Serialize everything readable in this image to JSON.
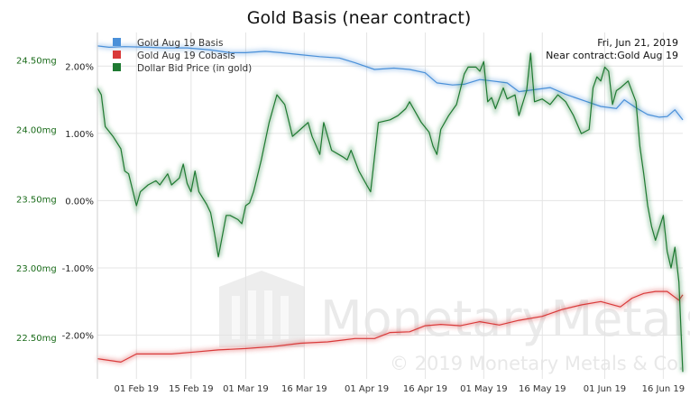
{
  "chart_data": {
    "type": "line",
    "title": "Gold Basis (near contract)",
    "info": {
      "date": "Fri, Jun 21, 2019",
      "contract": "Near contract:Gold Aug 19"
    },
    "watermark": {
      "brand": "MonetaryMetals",
      "copyright": "© 2019 Monetary Metals & Co."
    },
    "legend_position": "top-left",
    "grid": true,
    "x_range": [
      "2019-01-22",
      "2019-06-21"
    ],
    "x_ticks": [
      "01 Feb 19",
      "15 Feb 19",
      "01 Mar 19",
      "16 Mar 19",
      "01 Apr 19",
      "16 Apr 19",
      "01 May 19",
      "16 May 19",
      "01 Jun 19",
      "16 Jun 19"
    ],
    "left_axis": {
      "unit": "mg",
      "range": [
        22.2,
        24.7
      ],
      "ticks": [
        "24.50mg",
        "24.00mg",
        "23.50mg",
        "23.00mg",
        "22.50mg"
      ]
    },
    "right_axis": {
      "unit": "%",
      "range": [
        -2.65,
        2.5
      ],
      "ticks": [
        "2.00%",
        "1.00%",
        "0.00%",
        "-1.00%",
        "-2.00%"
      ]
    },
    "series": [
      {
        "name": "Gold Aug 19 Basis",
        "color": "#4a90d9",
        "axis": "right",
        "points": [
          [
            "2019-01-22",
            2.3
          ],
          [
            "2019-01-25",
            2.28
          ],
          [
            "2019-01-29",
            2.29
          ],
          [
            "2019-02-04",
            2.28
          ],
          [
            "2019-02-08",
            2.27
          ],
          [
            "2019-02-14",
            2.27
          ],
          [
            "2019-02-20",
            2.24
          ],
          [
            "2019-02-25",
            2.2
          ],
          [
            "2019-03-01",
            2.2
          ],
          [
            "2019-03-06",
            2.22
          ],
          [
            "2019-03-10",
            2.2
          ],
          [
            "2019-03-15",
            2.17
          ],
          [
            "2019-03-20",
            2.14
          ],
          [
            "2019-03-25",
            2.12
          ],
          [
            "2019-03-29",
            2.05
          ],
          [
            "2019-04-03",
            1.95
          ],
          [
            "2019-04-08",
            1.97
          ],
          [
            "2019-04-12",
            1.95
          ],
          [
            "2019-04-16",
            1.9
          ],
          [
            "2019-04-19",
            1.75
          ],
          [
            "2019-04-23",
            1.72
          ],
          [
            "2019-04-26",
            1.73
          ],
          [
            "2019-04-30",
            1.8
          ],
          [
            "2019-05-03",
            1.78
          ],
          [
            "2019-05-07",
            1.75
          ],
          [
            "2019-05-10",
            1.62
          ],
          [
            "2019-05-14",
            1.65
          ],
          [
            "2019-05-18",
            1.68
          ],
          [
            "2019-05-22",
            1.58
          ],
          [
            "2019-05-27",
            1.48
          ],
          [
            "2019-05-31",
            1.4
          ],
          [
            "2019-06-04",
            1.37
          ],
          [
            "2019-06-06",
            1.5
          ],
          [
            "2019-06-09",
            1.38
          ],
          [
            "2019-06-12",
            1.28
          ],
          [
            "2019-06-15",
            1.24
          ],
          [
            "2019-06-17",
            1.25
          ],
          [
            "2019-06-19",
            1.35
          ],
          [
            "2019-06-21",
            1.2
          ]
        ]
      },
      {
        "name": "Gold Aug 19 Cobasis",
        "color": "#d93a3a",
        "axis": "right",
        "points": [
          [
            "2019-01-22",
            -2.35
          ],
          [
            "2019-01-28",
            -2.4
          ],
          [
            "2019-02-01",
            -2.28
          ],
          [
            "2019-02-10",
            -2.28
          ],
          [
            "2019-02-16",
            -2.25
          ],
          [
            "2019-02-22",
            -2.22
          ],
          [
            "2019-03-01",
            -2.2
          ],
          [
            "2019-03-08",
            -2.17
          ],
          [
            "2019-03-15",
            -2.12
          ],
          [
            "2019-03-22",
            -2.1
          ],
          [
            "2019-03-29",
            -2.05
          ],
          [
            "2019-04-03",
            -2.05
          ],
          [
            "2019-04-07",
            -1.96
          ],
          [
            "2019-04-12",
            -1.95
          ],
          [
            "2019-04-16",
            -1.86
          ],
          [
            "2019-04-20",
            -1.84
          ],
          [
            "2019-04-25",
            -1.86
          ],
          [
            "2019-04-30",
            -1.8
          ],
          [
            "2019-05-05",
            -1.85
          ],
          [
            "2019-05-10",
            -1.78
          ],
          [
            "2019-05-16",
            -1.72
          ],
          [
            "2019-05-21",
            -1.62
          ],
          [
            "2019-05-26",
            -1.55
          ],
          [
            "2019-05-31",
            -1.5
          ],
          [
            "2019-06-05",
            -1.58
          ],
          [
            "2019-06-08",
            -1.45
          ],
          [
            "2019-06-11",
            -1.38
          ],
          [
            "2019-06-14",
            -1.35
          ],
          [
            "2019-06-17",
            -1.35
          ],
          [
            "2019-06-20",
            -1.48
          ],
          [
            "2019-06-21",
            -1.4
          ]
        ]
      },
      {
        "name": "Dollar Bid Price (in gold)",
        "color": "#1e7a32",
        "axis": "left",
        "points": [
          [
            "2019-01-22",
            24.3
          ],
          [
            "2019-01-23",
            24.25
          ],
          [
            "2019-01-24",
            24.02
          ],
          [
            "2019-01-26",
            23.95
          ],
          [
            "2019-01-28",
            23.86
          ],
          [
            "2019-01-29",
            23.7
          ],
          [
            "2019-01-30",
            23.68
          ],
          [
            "2019-02-01",
            23.45
          ],
          [
            "2019-02-02",
            23.55
          ],
          [
            "2019-02-04",
            23.6
          ],
          [
            "2019-02-06",
            23.63
          ],
          [
            "2019-02-07",
            23.6
          ],
          [
            "2019-02-09",
            23.68
          ],
          [
            "2019-02-10",
            23.6
          ],
          [
            "2019-02-12",
            23.65
          ],
          [
            "2019-02-13",
            23.75
          ],
          [
            "2019-02-14",
            23.61
          ],
          [
            "2019-02-15",
            23.55
          ],
          [
            "2019-02-16",
            23.7
          ],
          [
            "2019-02-17",
            23.55
          ],
          [
            "2019-02-19",
            23.46
          ],
          [
            "2019-02-20",
            23.4
          ],
          [
            "2019-02-21",
            23.25
          ],
          [
            "2019-02-22",
            23.08
          ],
          [
            "2019-02-24",
            23.38
          ],
          [
            "2019-02-25",
            23.38
          ],
          [
            "2019-02-27",
            23.35
          ],
          [
            "2019-02-28",
            23.32
          ],
          [
            "2019-03-01",
            23.45
          ],
          [
            "2019-03-02",
            23.47
          ],
          [
            "2019-03-03",
            23.55
          ],
          [
            "2019-03-05",
            23.78
          ],
          [
            "2019-03-07",
            24.05
          ],
          [
            "2019-03-09",
            24.25
          ],
          [
            "2019-03-11",
            24.18
          ],
          [
            "2019-03-13",
            23.95
          ],
          [
            "2019-03-15",
            24.0
          ],
          [
            "2019-03-17",
            24.05
          ],
          [
            "2019-03-18",
            23.95
          ],
          [
            "2019-03-20",
            23.82
          ],
          [
            "2019-03-21",
            24.05
          ],
          [
            "2019-03-23",
            23.85
          ],
          [
            "2019-03-26",
            23.8
          ],
          [
            "2019-03-27",
            23.78
          ],
          [
            "2019-03-28",
            23.85
          ],
          [
            "2019-03-30",
            23.7
          ],
          [
            "2019-04-01",
            23.6
          ],
          [
            "2019-04-02",
            23.55
          ],
          [
            "2019-04-04",
            24.05
          ],
          [
            "2019-04-07",
            24.07
          ],
          [
            "2019-04-09",
            24.1
          ],
          [
            "2019-04-11",
            24.15
          ],
          [
            "2019-04-12",
            24.2
          ],
          [
            "2019-04-14",
            24.1
          ],
          [
            "2019-04-15",
            24.05
          ],
          [
            "2019-04-17",
            23.98
          ],
          [
            "2019-04-18",
            23.88
          ],
          [
            "2019-04-19",
            23.82
          ],
          [
            "2019-04-20",
            24.0
          ],
          [
            "2019-04-22",
            24.1
          ],
          [
            "2019-04-24",
            24.18
          ],
          [
            "2019-04-26",
            24.4
          ],
          [
            "2019-04-27",
            24.45
          ],
          [
            "2019-04-29",
            24.45
          ],
          [
            "2019-04-30",
            24.42
          ],
          [
            "2019-05-01",
            24.49
          ],
          [
            "2019-05-02",
            24.2
          ],
          [
            "2019-05-03",
            24.23
          ],
          [
            "2019-05-04",
            24.15
          ],
          [
            "2019-05-06",
            24.3
          ],
          [
            "2019-05-07",
            24.22
          ],
          [
            "2019-05-09",
            24.25
          ],
          [
            "2019-05-10",
            24.1
          ],
          [
            "2019-05-12",
            24.28
          ],
          [
            "2019-05-13",
            24.55
          ],
          [
            "2019-05-14",
            24.2
          ],
          [
            "2019-05-16",
            24.22
          ],
          [
            "2019-05-18",
            24.18
          ],
          [
            "2019-05-20",
            24.25
          ],
          [
            "2019-05-22",
            24.2
          ],
          [
            "2019-05-24",
            24.1
          ],
          [
            "2019-05-26",
            23.97
          ],
          [
            "2019-05-28",
            24.0
          ],
          [
            "2019-05-29",
            24.3
          ],
          [
            "2019-05-30",
            24.38
          ],
          [
            "2019-05-31",
            24.35
          ],
          [
            "2019-06-01",
            24.45
          ],
          [
            "2019-06-02",
            24.42
          ],
          [
            "2019-06-03",
            24.18
          ],
          [
            "2019-06-04",
            24.28
          ],
          [
            "2019-06-05",
            24.3
          ],
          [
            "2019-06-07",
            24.35
          ],
          [
            "2019-06-09",
            24.2
          ],
          [
            "2019-06-10",
            23.88
          ],
          [
            "2019-06-11",
            23.68
          ],
          [
            "2019-06-12",
            23.45
          ],
          [
            "2019-06-13",
            23.3
          ],
          [
            "2019-06-14",
            23.2
          ],
          [
            "2019-06-16",
            23.38
          ],
          [
            "2019-06-17",
            23.12
          ],
          [
            "2019-06-18",
            23.0
          ],
          [
            "2019-06-19",
            23.15
          ],
          [
            "2019-06-20",
            22.9
          ],
          [
            "2019-06-21",
            22.25
          ]
        ]
      }
    ]
  }
}
